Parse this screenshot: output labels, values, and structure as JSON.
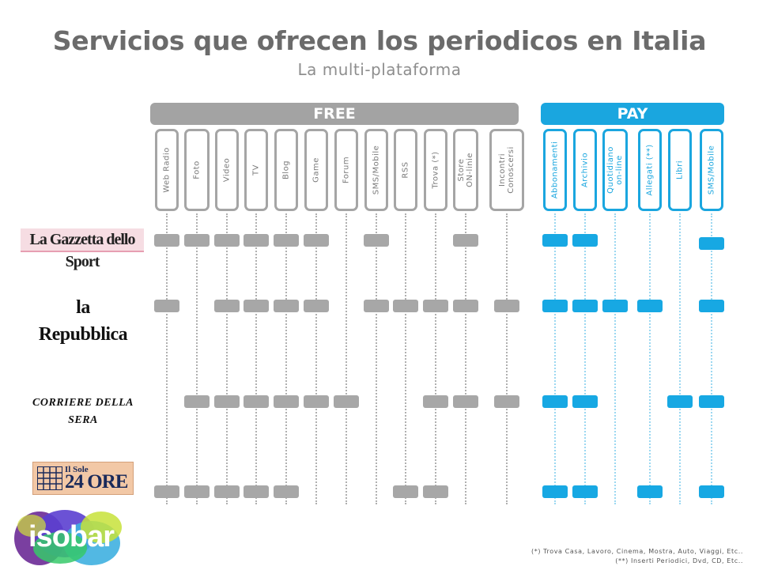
{
  "title": "Servicios que ofrecen los periodicos en Italia",
  "subtitle": "La multi-plataforma",
  "free_label": "FREE",
  "pay_label": "PAY",
  "free_columns": [
    {
      "label": "Web Radio"
    },
    {
      "label": "Foto"
    },
    {
      "label": "Video"
    },
    {
      "label": "TV"
    },
    {
      "label": "Blog"
    },
    {
      "label": "Game"
    },
    {
      "label": "Forum"
    },
    {
      "label": "SMS/Mobile"
    },
    {
      "label": "RSS"
    },
    {
      "label": "Trova (*)"
    },
    {
      "label": "Store\nON-linie"
    },
    {
      "label": "Incontri\nConoscersi"
    }
  ],
  "pay_columns": [
    {
      "label": "Abbonamenti"
    },
    {
      "label": "Archivio"
    },
    {
      "label": "Quotidiano\non-line"
    },
    {
      "label": "Allegati (**)"
    },
    {
      "label": "Libri"
    },
    {
      "label": "SMS/Mobile"
    }
  ],
  "newspapers": [
    {
      "name": "La Gazzetta dello Sport",
      "free": [
        1,
        1,
        1,
        1,
        1,
        1,
        0,
        1,
        0,
        0,
        1,
        0
      ],
      "pay": [
        1,
        1,
        0,
        0,
        0,
        1
      ]
    },
    {
      "name": "la Repubblica",
      "free": [
        1,
        0,
        1,
        1,
        1,
        1,
        0,
        1,
        1,
        1,
        1,
        1
      ],
      "pay": [
        1,
        1,
        1,
        1,
        0,
        1
      ]
    },
    {
      "name": "CORRIERE DELLA SERA",
      "free": [
        0,
        1,
        1,
        1,
        1,
        1,
        1,
        0,
        0,
        1,
        1,
        1
      ],
      "pay": [
        1,
        1,
        0,
        0,
        1,
        1
      ]
    },
    {
      "name": "Il Sole 24 ORE",
      "free": [
        1,
        1,
        1,
        1,
        1,
        0,
        0,
        0,
        1,
        1,
        0,
        0
      ],
      "pay": [
        1,
        1,
        0,
        1,
        0,
        1
      ]
    }
  ],
  "logo_text": {
    "gazzetta": "La Gazzetta dello Sport",
    "repubblica": "la Repubblica",
    "corriere": "CORRIERE DELLA SERA",
    "sole_small": "Il Sole",
    "sole_big": "24 ORE"
  },
  "brand": "isobar",
  "footnotes": [
    "(*) Trova Casa, Lavoro, Cinema, Mostra, Auto, Viaggi, Etc..",
    "(**) Inserti Periodici, Dvd, CD, Etc.."
  ],
  "colors": {
    "free": "#a7a7a7",
    "pay": "#17a8e3",
    "title": "#6b6b6b"
  }
}
